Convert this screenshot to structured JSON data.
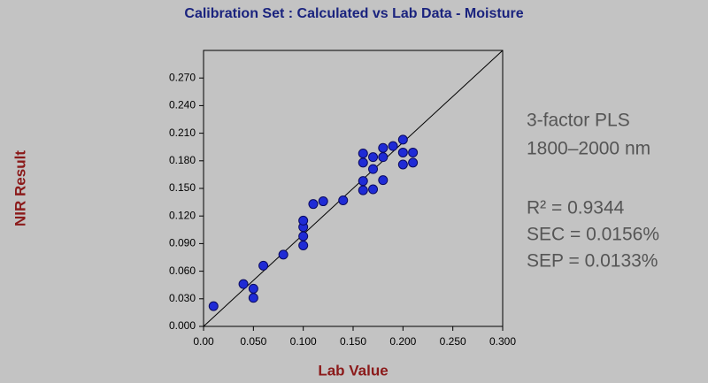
{
  "chart_data": {
    "type": "scatter",
    "title": "Calibration Set : Calculated vs Lab Data - Moisture",
    "x_label": "Lab Value",
    "y_label": "NIR Result",
    "color": "#1f2bd6",
    "diagonal": true,
    "xlim": [
      0,
      0.3
    ],
    "ylim": [
      0,
      0.3
    ],
    "xticks": [
      {
        "value": 0,
        "label": "0.00"
      },
      {
        "value": 0.05,
        "label": "0.050"
      },
      {
        "value": 0.1,
        "label": "0.100"
      },
      {
        "value": 0.15,
        "label": "0.150"
      },
      {
        "value": 0.2,
        "label": "0.200"
      },
      {
        "value": 0.25,
        "label": "0.250"
      },
      {
        "value": 0.3,
        "label": "0.300"
      }
    ],
    "yticks": [
      {
        "value": 0,
        "label": "0.000"
      },
      {
        "value": 0.03,
        "label": "0.030"
      },
      {
        "value": 0.06,
        "label": "0.060"
      },
      {
        "value": 0.09,
        "label": "0.090"
      },
      {
        "value": 0.12,
        "label": "0.120"
      },
      {
        "value": 0.15,
        "label": "0.150"
      },
      {
        "value": 0.18,
        "label": "0.180"
      },
      {
        "value": 0.21,
        "label": "0.210"
      },
      {
        "value": 0.24,
        "label": "0.240"
      },
      {
        "value": 0.27,
        "label": "0.270"
      }
    ],
    "x": [
      0.01,
      0.04,
      0.05,
      0.05,
      0.06,
      0.08,
      0.1,
      0.1,
      0.1,
      0.1,
      0.11,
      0.12,
      0.14,
      0.16,
      0.16,
      0.16,
      0.16,
      0.17,
      0.17,
      0.17,
      0.18,
      0.18,
      0.18,
      0.19,
      0.2,
      0.2,
      0.2,
      0.21,
      0.21
    ],
    "y": [
      0.022,
      0.046,
      0.041,
      0.031,
      0.066,
      0.078,
      0.088,
      0.098,
      0.108,
      0.115,
      0.133,
      0.136,
      0.137,
      0.148,
      0.158,
      0.178,
      0.188,
      0.149,
      0.171,
      0.184,
      0.159,
      0.184,
      0.194,
      0.196,
      0.203,
      0.189,
      0.176,
      0.189,
      0.178
    ],
    "annotations": [
      "3-factor PLS",
      "1800–2000 nm",
      "R² = 0.9344",
      "SEC = 0.0156%",
      "SEP = 0.0133%"
    ]
  }
}
